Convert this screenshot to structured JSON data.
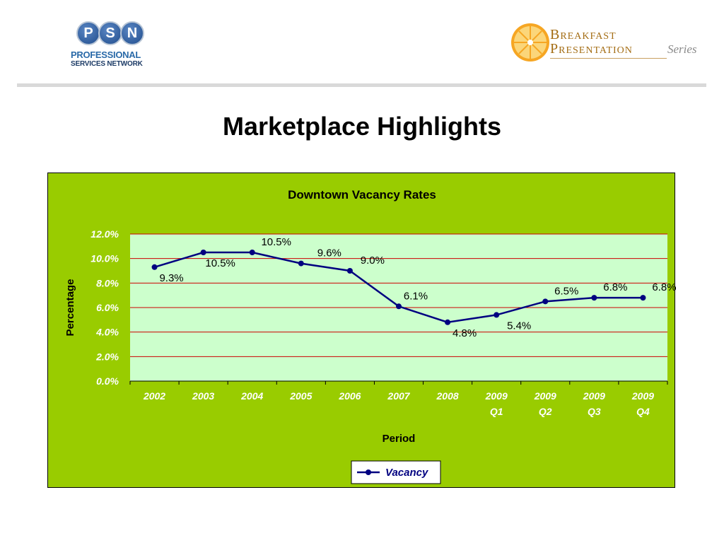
{
  "header": {
    "psn_logo": {
      "letters": [
        "P",
        "S",
        "N"
      ],
      "line1": "PROFESSIONAL",
      "line2": "SERVICES NETWORK"
    },
    "breakfast_logo": {
      "line1": "Breakfast",
      "line2": "Presentation",
      "series": "Series"
    }
  },
  "page_title": "Marketplace Highlights",
  "colors": {
    "chart_background": "#99cc00",
    "plot_background": "#ccffcc",
    "gridline": "#cc0000",
    "series_line": "#000080",
    "axis_text": "#ffffff"
  },
  "chart_data": {
    "type": "line",
    "title": "Downtown Vacancy Rates",
    "xlabel": "Period",
    "ylabel": "Percentage",
    "categories": [
      "2002",
      "2003",
      "2004",
      "2005",
      "2006",
      "2007",
      "2008",
      "2009 Q1",
      "2009 Q2",
      "2009 Q3",
      "2009 Q4"
    ],
    "ylim": [
      0,
      12
    ],
    "yticks": [
      "0.0%",
      "2.0%",
      "4.0%",
      "6.0%",
      "8.0%",
      "10.0%",
      "12.0%"
    ],
    "series": [
      {
        "name": "Vacancy",
        "values": [
          9.3,
          10.5,
          10.5,
          9.6,
          9.0,
          6.1,
          4.8,
          5.4,
          6.5,
          6.8,
          6.8
        ],
        "labels": [
          "9.3%",
          "10.5%",
          "10.5%",
          "9.6%",
          "9.0%",
          "6.1%",
          "4.8%",
          "5.4%",
          "6.5%",
          "6.8%",
          "6.8%"
        ]
      }
    ],
    "grid": true,
    "legend": "bottom-center"
  }
}
